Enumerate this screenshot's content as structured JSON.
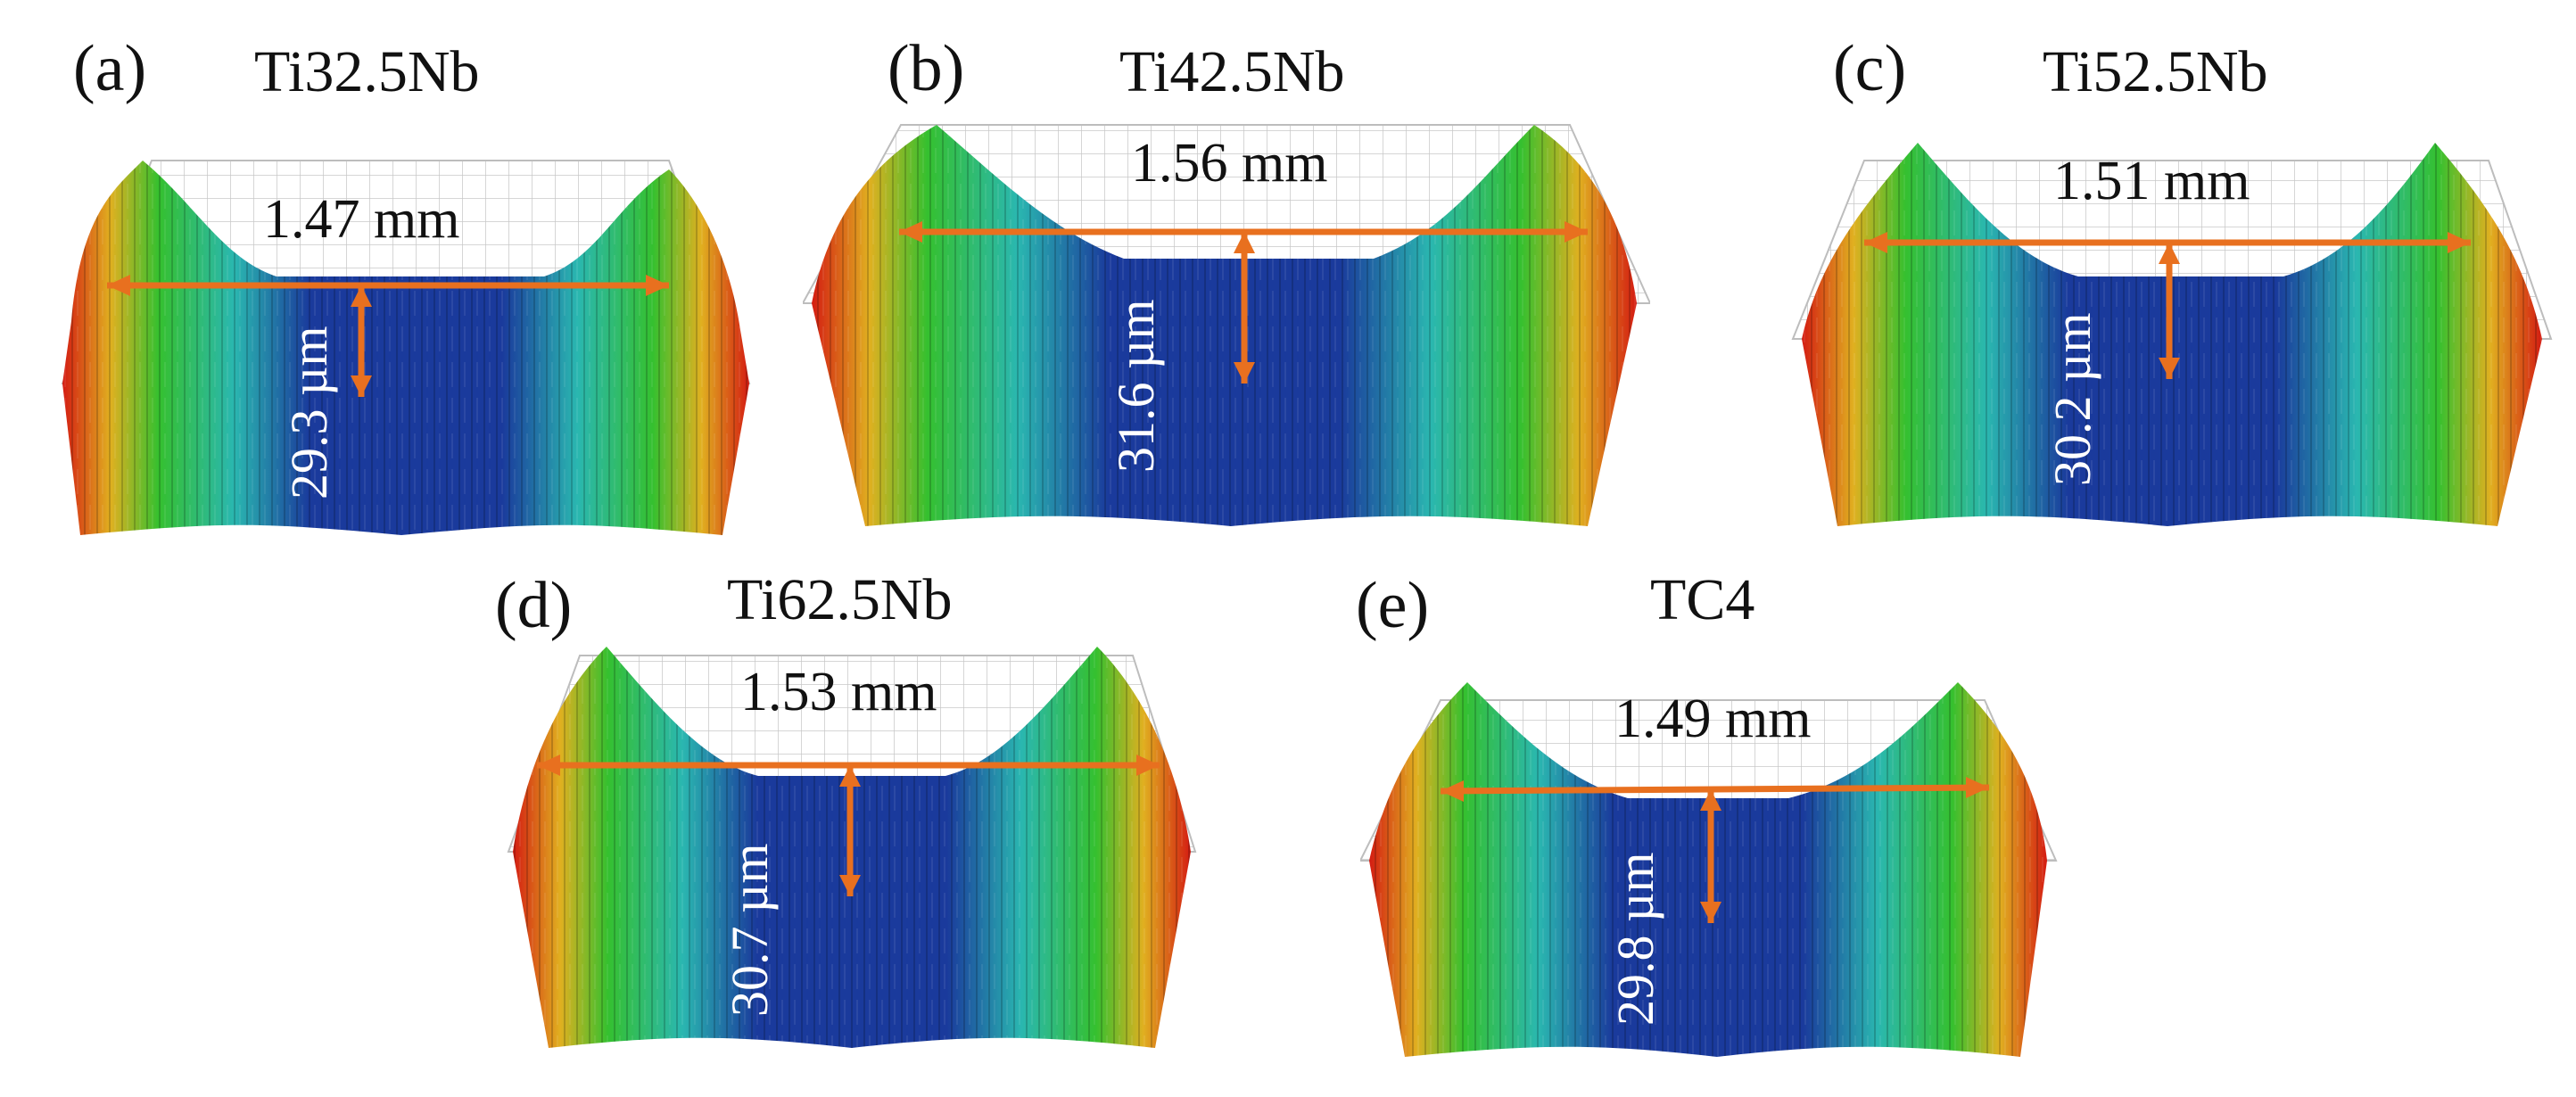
{
  "colors": {
    "arrow": "#e8701f",
    "surface_deep": "#1a3a9c",
    "surface_mid": "#2ab7b0",
    "surface_high": "#35c02f",
    "surface_edge": "#d41c12",
    "grid": "#c8c8c8"
  },
  "panels": [
    {
      "tag": "(a)",
      "title": "Ti32.5Nb",
      "width_label": "1.47 mm",
      "depth_label": "29.3 µm",
      "width_mm": 1.47,
      "depth_um": 29.3
    },
    {
      "tag": "(b)",
      "title": "Ti42.5Nb",
      "width_label": "1.56 mm",
      "depth_label": "31.6 µm",
      "width_mm": 1.56,
      "depth_um": 31.6
    },
    {
      "tag": "(c)",
      "title": "Ti52.5Nb",
      "width_label": "1.51 mm",
      "depth_label": "30.2 µm",
      "width_mm": 1.51,
      "depth_um": 30.2
    },
    {
      "tag": "(d)",
      "title": "Ti62.5Nb",
      "width_label": "1.53 mm",
      "depth_label": "30.7 µm",
      "width_mm": 1.53,
      "depth_um": 30.7
    },
    {
      "tag": "(e)",
      "title": "TC4",
      "width_label": "1.49 mm",
      "depth_label": "29.8 µm",
      "width_mm": 1.49,
      "depth_um": 29.8
    }
  ]
}
